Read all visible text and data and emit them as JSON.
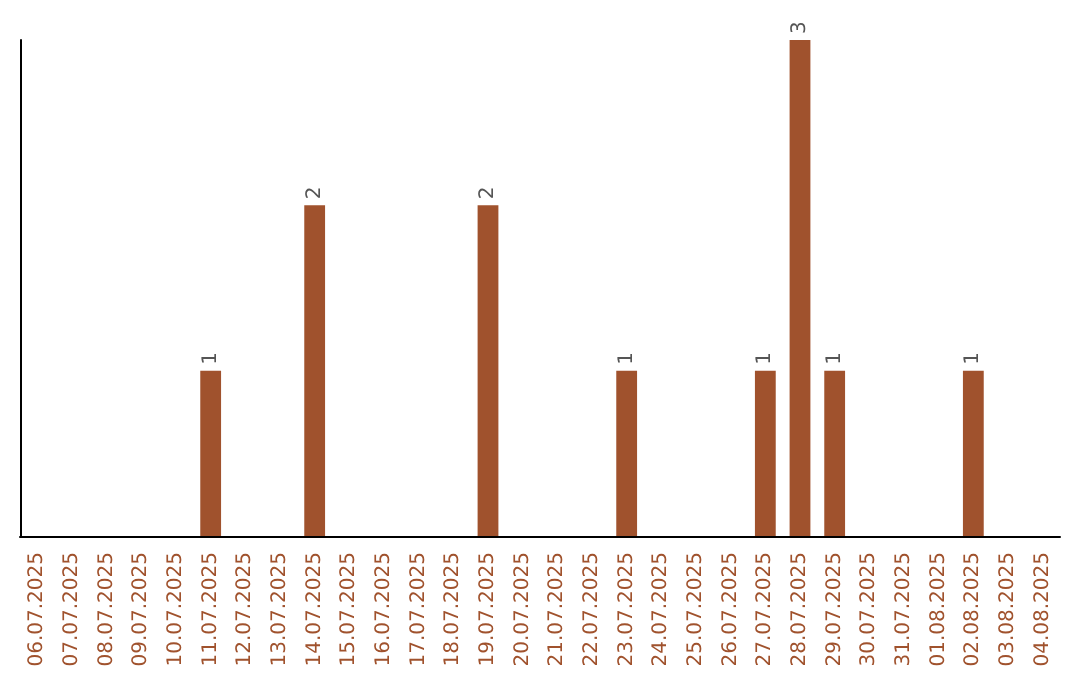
{
  "chart_data": {
    "type": "bar",
    "categories": [
      "06.07.2025",
      "07.07.2025",
      "08.07.2025",
      "09.07.2025",
      "10.07.2025",
      "11.07.2025",
      "12.07.2025",
      "13.07.2025",
      "14.07.2025",
      "15.07.2025",
      "16.07.2025",
      "17.07.2025",
      "18.07.2025",
      "19.07.2025",
      "20.07.2025",
      "21.07.2025",
      "22.07.2025",
      "23.07.2025",
      "24.07.2025",
      "25.07.2025",
      "26.07.2025",
      "27.07.2025",
      "28.07.2025",
      "29.07.2025",
      "30.07.2025",
      "31.07.2025",
      "01.08.2025",
      "02.08.2025",
      "03.08.2025",
      "04.08.2025"
    ],
    "values": [
      0,
      0,
      0,
      0,
      0,
      1,
      0,
      0,
      2,
      0,
      0,
      0,
      0,
      2,
      0,
      0,
      0,
      1,
      0,
      0,
      0,
      1,
      3,
      1,
      0,
      0,
      0,
      1,
      0,
      0
    ],
    "value_labels": [
      null,
      null,
      null,
      null,
      null,
      "1",
      null,
      null,
      "2",
      null,
      null,
      null,
      null,
      "2",
      null,
      null,
      null,
      "1",
      null,
      null,
      null,
      "1",
      "3",
      "1",
      null,
      null,
      null,
      "1",
      null,
      null
    ],
    "color": "#a0522d",
    "grid": false,
    "tick_labels": "x"
  }
}
